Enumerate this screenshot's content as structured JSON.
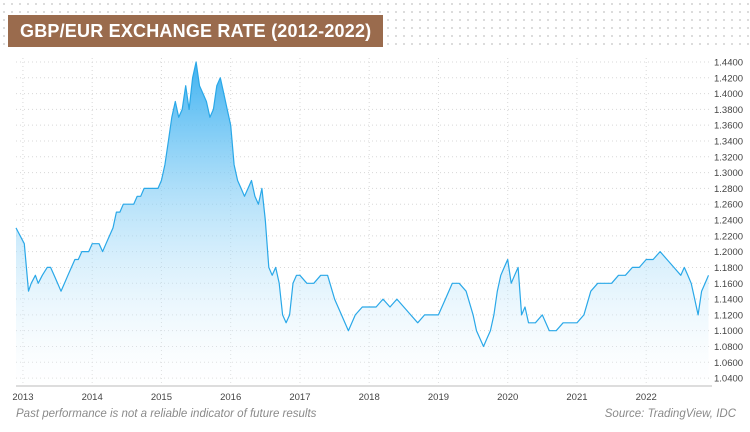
{
  "title": "GBP/EUR EXCHANGE RATE (2012-2022)",
  "footnote": "Past performance is not a reliable indicator of future results",
  "source": "Source: TradingView, IDC",
  "colors": {
    "line": "#2aa8e8",
    "fill_top": "#35aef0",
    "fill_bottom": "#ffffff",
    "title_bg": "#9a6b4d"
  },
  "chart_data": {
    "type": "area",
    "title": "GBP/EUR EXCHANGE RATE (2012-2022)",
    "xlabel": "",
    "ylabel": "",
    "xlim": [
      2012.9,
      2022.95
    ],
    "ylim": [
      1.03,
      1.445
    ],
    "x_ticks": [
      2013,
      2014,
      2015,
      2016,
      2017,
      2018,
      2019,
      2020,
      2021,
      2022
    ],
    "x_tick_labels": [
      "2013",
      "2014",
      "2015",
      "2016",
      "2017",
      "2018",
      "2019",
      "2020",
      "2021",
      "2022"
    ],
    "y_ticks": [
      1.04,
      1.06,
      1.08,
      1.1,
      1.12,
      1.14,
      1.16,
      1.18,
      1.2,
      1.22,
      1.24,
      1.26,
      1.28,
      1.3,
      1.32,
      1.34,
      1.36,
      1.38,
      1.4,
      1.42,
      1.44
    ],
    "y_tick_labels": [
      "1.0400",
      "1.0600",
      "1.0800",
      "1.1000",
      "1.1200",
      "1.1400",
      "1.1600",
      "1.1800",
      "1.2000",
      "1.2200",
      "1.2400",
      "1.2600",
      "1.2800",
      "1.3000",
      "1.3200",
      "1.3400",
      "1.3600",
      "1.3800",
      "1.4000",
      "1.4200",
      "1.4400"
    ],
    "grid": true,
    "series": [
      {
        "x": [
          2012.9,
          2013.02,
          2013.08,
          2013.12,
          2013.18,
          2013.22,
          2013.28,
          2013.35,
          2013.4,
          2013.45,
          2013.5,
          2013.55,
          2013.6,
          2013.65,
          2013.7,
          2013.75,
          2013.8,
          2013.85,
          2013.9,
          2013.95,
          2014.0,
          2014.05,
          2014.1,
          2014.15,
          2014.2,
          2014.25,
          2014.3,
          2014.35,
          2014.4,
          2014.45,
          2014.5,
          2014.55,
          2014.6,
          2014.65,
          2014.7,
          2014.75,
          2014.8,
          2014.85,
          2014.9,
          2014.95,
          2015.0,
          2015.05,
          2015.1,
          2015.15,
          2015.2,
          2015.25,
          2015.3,
          2015.35,
          2015.4,
          2015.45,
          2015.5,
          2015.55,
          2015.6,
          2015.65,
          2015.7,
          2015.75,
          2015.8,
          2015.85,
          2015.9,
          2015.95,
          2016.0,
          2016.05,
          2016.1,
          2016.15,
          2016.2,
          2016.25,
          2016.3,
          2016.35,
          2016.4,
          2016.45,
          2016.5,
          2016.55,
          2016.6,
          2016.65,
          2016.7,
          2016.75,
          2016.8,
          2016.85,
          2016.9,
          2016.95,
          2017.0,
          2017.1,
          2017.2,
          2017.3,
          2017.4,
          2017.5,
          2017.6,
          2017.7,
          2017.8,
          2017.9,
          2018.0,
          2018.1,
          2018.2,
          2018.3,
          2018.4,
          2018.5,
          2018.6,
          2018.7,
          2018.8,
          2018.9,
          2019.0,
          2019.1,
          2019.2,
          2019.3,
          2019.4,
          2019.5,
          2019.55,
          2019.6,
          2019.65,
          2019.7,
          2019.75,
          2019.8,
          2019.85,
          2019.9,
          2019.95,
          2020.0,
          2020.05,
          2020.1,
          2020.15,
          2020.2,
          2020.25,
          2020.3,
          2020.4,
          2020.5,
          2020.6,
          2020.7,
          2020.8,
          2020.9,
          2021.0,
          2021.1,
          2021.2,
          2021.3,
          2021.4,
          2021.5,
          2021.6,
          2021.7,
          2021.8,
          2021.9,
          2022.0,
          2022.1,
          2022.2,
          2022.3,
          2022.4,
          2022.5,
          2022.55,
          2022.6,
          2022.65,
          2022.7,
          2022.75,
          2022.8,
          2022.85,
          2022.9
        ],
        "values": [
          1.23,
          1.21,
          1.15,
          1.16,
          1.17,
          1.16,
          1.17,
          1.18,
          1.18,
          1.17,
          1.16,
          1.15,
          1.16,
          1.17,
          1.18,
          1.19,
          1.19,
          1.2,
          1.2,
          1.2,
          1.21,
          1.21,
          1.21,
          1.2,
          1.21,
          1.22,
          1.23,
          1.25,
          1.25,
          1.26,
          1.26,
          1.26,
          1.26,
          1.27,
          1.27,
          1.28,
          1.28,
          1.28,
          1.28,
          1.28,
          1.29,
          1.31,
          1.34,
          1.37,
          1.39,
          1.37,
          1.38,
          1.41,
          1.38,
          1.42,
          1.44,
          1.41,
          1.4,
          1.39,
          1.37,
          1.38,
          1.41,
          1.42,
          1.4,
          1.38,
          1.36,
          1.31,
          1.29,
          1.28,
          1.27,
          1.28,
          1.29,
          1.27,
          1.26,
          1.28,
          1.24,
          1.18,
          1.17,
          1.18,
          1.16,
          1.12,
          1.11,
          1.12,
          1.16,
          1.17,
          1.17,
          1.16,
          1.16,
          1.17,
          1.17,
          1.14,
          1.12,
          1.1,
          1.12,
          1.13,
          1.13,
          1.13,
          1.14,
          1.13,
          1.14,
          1.13,
          1.12,
          1.11,
          1.12,
          1.12,
          1.12,
          1.14,
          1.16,
          1.16,
          1.15,
          1.12,
          1.1,
          1.09,
          1.08,
          1.09,
          1.1,
          1.12,
          1.15,
          1.17,
          1.18,
          1.19,
          1.16,
          1.17,
          1.18,
          1.12,
          1.13,
          1.11,
          1.11,
          1.12,
          1.1,
          1.1,
          1.11,
          1.11,
          1.11,
          1.12,
          1.15,
          1.16,
          1.16,
          1.16,
          1.17,
          1.17,
          1.18,
          1.18,
          1.19,
          1.19,
          1.2,
          1.19,
          1.18,
          1.17,
          1.18,
          1.17,
          1.16,
          1.14,
          1.12,
          1.15,
          1.16,
          1.17
        ]
      }
    ]
  }
}
